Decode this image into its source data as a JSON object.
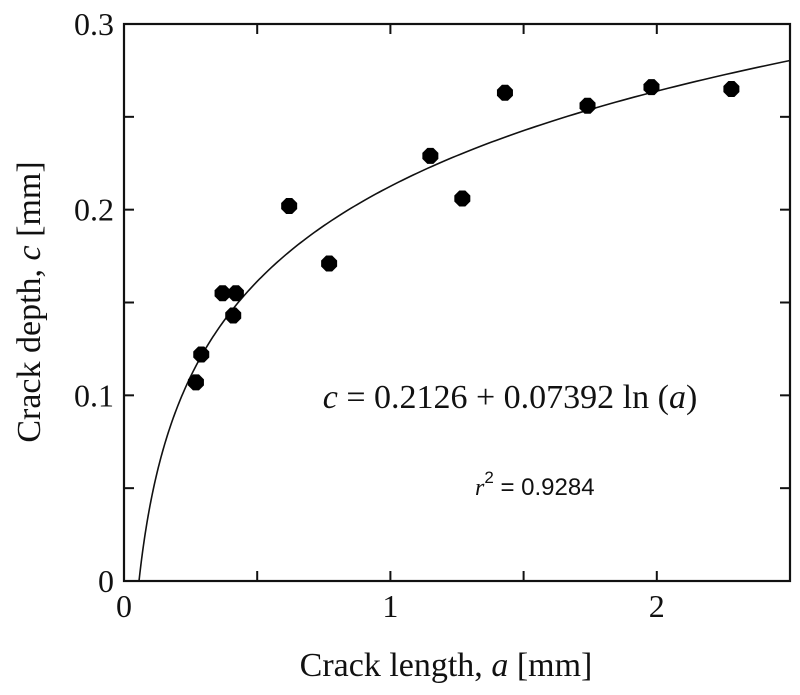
{
  "chart_data": {
    "type": "scatter",
    "xlabel": "Crack length, a [mm]",
    "xlabel_parts": {
      "pre": "Crack length, ",
      "var": "a",
      "post": " [mm]"
    },
    "ylabel": "Crack depth, c [mm]",
    "ylabel_parts": {
      "pre": "Crack depth, ",
      "var": "c",
      "post": " [mm]"
    },
    "xlim": [
      0,
      2.5
    ],
    "ylim": [
      0,
      0.3
    ],
    "x_ticks": [
      {
        "value": 0,
        "label": "0"
      },
      {
        "value": 1,
        "label": "1"
      },
      {
        "value": 2,
        "label": "2"
      }
    ],
    "y_ticks": [
      {
        "value": 0,
        "label": "0"
      },
      {
        "value": 0.1,
        "label": "0.1"
      },
      {
        "value": 0.2,
        "label": "0.2"
      },
      {
        "value": 0.3,
        "label": "0.3"
      }
    ],
    "x_minor_step": 0.5,
    "y_minor_step": 0.05,
    "grid": false,
    "marker_color": "#000000",
    "points": [
      {
        "x": 0.27,
        "y": 0.107
      },
      {
        "x": 0.29,
        "y": 0.122
      },
      {
        "x": 0.37,
        "y": 0.155
      },
      {
        "x": 0.42,
        "y": 0.155
      },
      {
        "x": 0.41,
        "y": 0.143
      },
      {
        "x": 0.62,
        "y": 0.202
      },
      {
        "x": 0.77,
        "y": 0.171
      },
      {
        "x": 1.15,
        "y": 0.229
      },
      {
        "x": 1.27,
        "y": 0.206
      },
      {
        "x": 1.43,
        "y": 0.263
      },
      {
        "x": 1.74,
        "y": 0.256
      },
      {
        "x": 1.98,
        "y": 0.266
      },
      {
        "x": 2.28,
        "y": 0.265
      }
    ],
    "fit": {
      "type": "log",
      "intercept": 0.2126,
      "slope": 0.07392
    },
    "annotations": {
      "equation": {
        "lhs": "c",
        "mid": " = 0.2126 + 0.07392 ln (",
        "var": "a",
        "rhs": ")"
      },
      "r2": {
        "var": "r",
        "sup": "2",
        "rest": " = 0.9284"
      }
    }
  }
}
